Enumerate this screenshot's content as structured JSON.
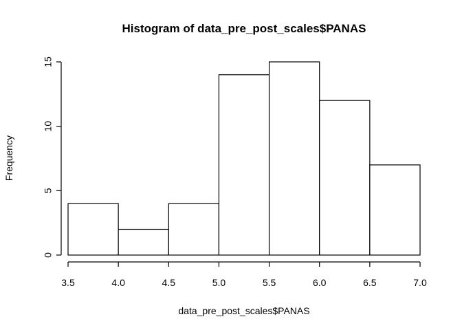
{
  "chart_data": {
    "type": "bar",
    "title": "Histogram of data_pre_post_scales$PANAS",
    "xlabel": "data_pre_post_scales$PANAS",
    "ylabel": "Frequency",
    "bins": [
      {
        "start": 3.5,
        "end": 4.0,
        "count": 4
      },
      {
        "start": 4.0,
        "end": 4.5,
        "count": 2
      },
      {
        "start": 4.5,
        "end": 5.0,
        "count": 4
      },
      {
        "start": 5.0,
        "end": 5.5,
        "count": 14
      },
      {
        "start": 5.5,
        "end": 6.0,
        "count": 15
      },
      {
        "start": 6.0,
        "end": 6.5,
        "count": 12
      },
      {
        "start": 6.5,
        "end": 7.0,
        "count": 7
      }
    ],
    "x_ticks": [
      "3.5",
      "4.0",
      "4.5",
      "5.0",
      "5.5",
      "6.0",
      "6.5",
      "7.0"
    ],
    "y_ticks": [
      "0",
      "5",
      "10",
      "15"
    ],
    "xlim": [
      3.5,
      7.0
    ],
    "ylim": [
      0,
      15
    ],
    "grid": false,
    "colors": {
      "bar_fill": "#ffffff",
      "bar_stroke": "#000000"
    }
  }
}
